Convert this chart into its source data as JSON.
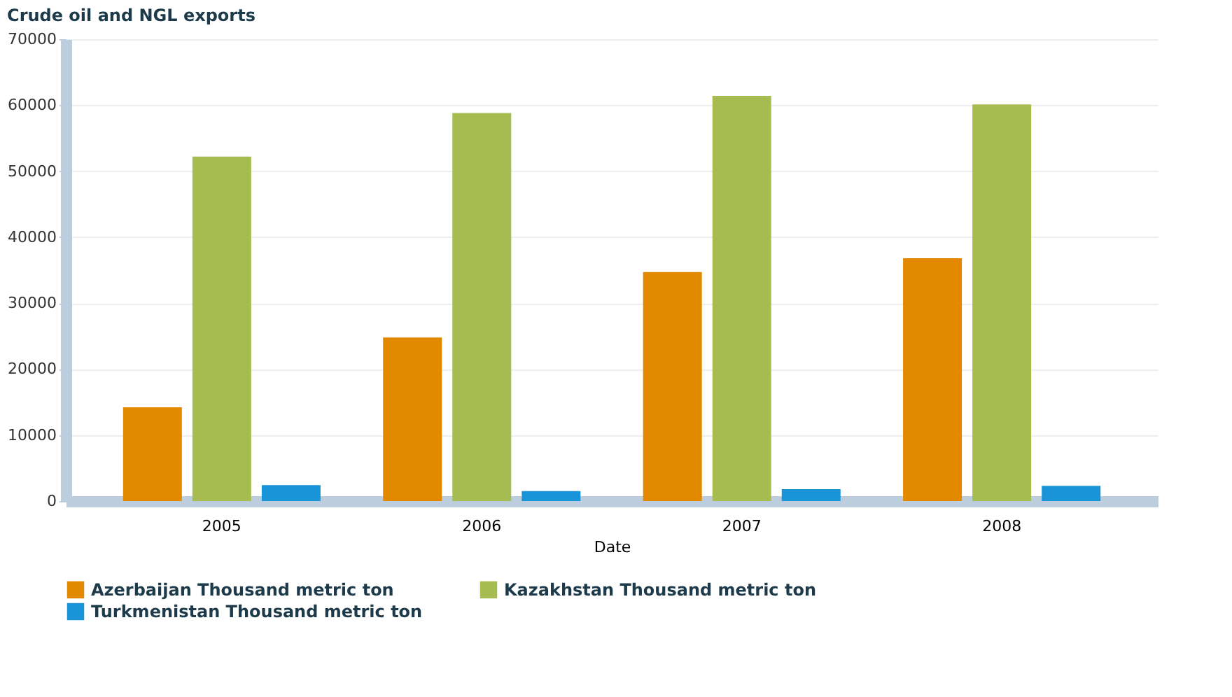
{
  "chart_data": {
    "type": "bar",
    "title": "Crude oil and NGL exports",
    "xlabel": "Date",
    "categories": [
      "2005",
      "2006",
      "2007",
      "2008"
    ],
    "series": [
      {
        "name": "Azerbaijan Thousand metric ton",
        "color": "#e38900",
        "values": [
          14200,
          24800,
          34700,
          36800
        ]
      },
      {
        "name": "Kazakhstan Thousand metric ton",
        "color": "#a6bc50",
        "values": [
          52200,
          58800,
          61400,
          60100
        ]
      },
      {
        "name": "Turkmenistan Thousand metric ton",
        "color": "#1a94d9",
        "values": [
          2400,
          1500,
          1800,
          2300
        ]
      }
    ],
    "ylim": [
      0,
      70000
    ],
    "yticks": [
      0,
      10000,
      20000,
      30000,
      40000,
      50000,
      60000,
      70000
    ],
    "grid": "y",
    "legend": "bottom"
  }
}
